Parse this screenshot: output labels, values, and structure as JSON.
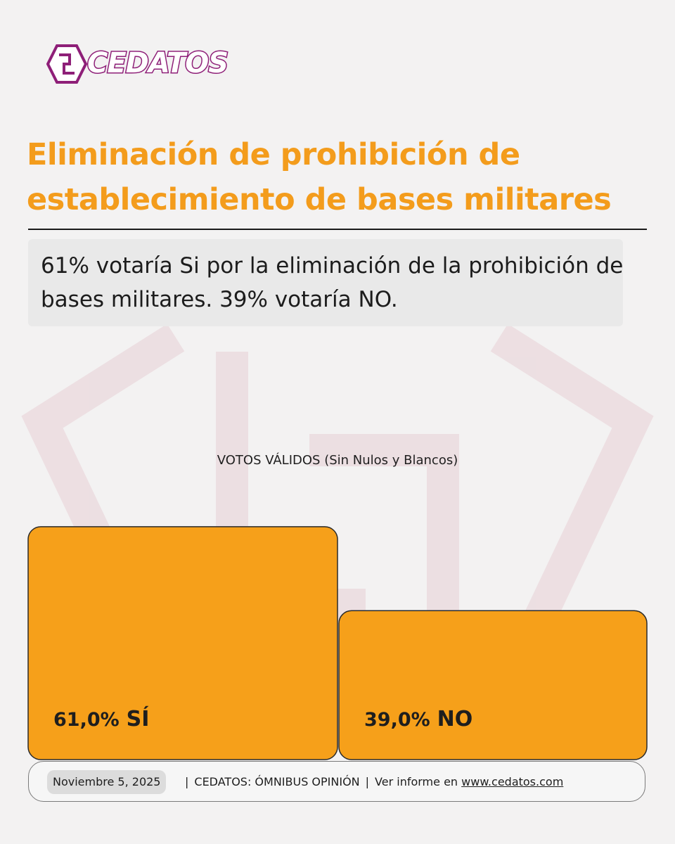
{
  "brand": {
    "name": "CEDATOS",
    "color": "#8e1f78",
    "accent": "#f39c1c"
  },
  "header": {
    "title": "Eliminación de prohibición de establecimiento de bases militares",
    "subtitle": "61% votaría Si por la eliminación de la prohibición de bases militares. 39% votaría NO."
  },
  "chart_data": {
    "type": "bar",
    "title": "VOTOS VÁLIDOS (Sin Nulos y Blancos)",
    "categories": [
      "SÍ",
      "NO"
    ],
    "values": [
      61.0,
      39.0
    ],
    "value_labels": [
      "61,0%",
      "39,0%"
    ],
    "ylim": [
      0,
      70
    ],
    "bar_color": "#f6a01a",
    "grid": false,
    "legend": "none"
  },
  "footer": {
    "date": "Noviembre 5, 2025",
    "source": "CEDATOS: ÓMNIBUS OPINIÓN",
    "report_prefix": "Ver informe en",
    "report_link": "www.cedatos.com"
  }
}
